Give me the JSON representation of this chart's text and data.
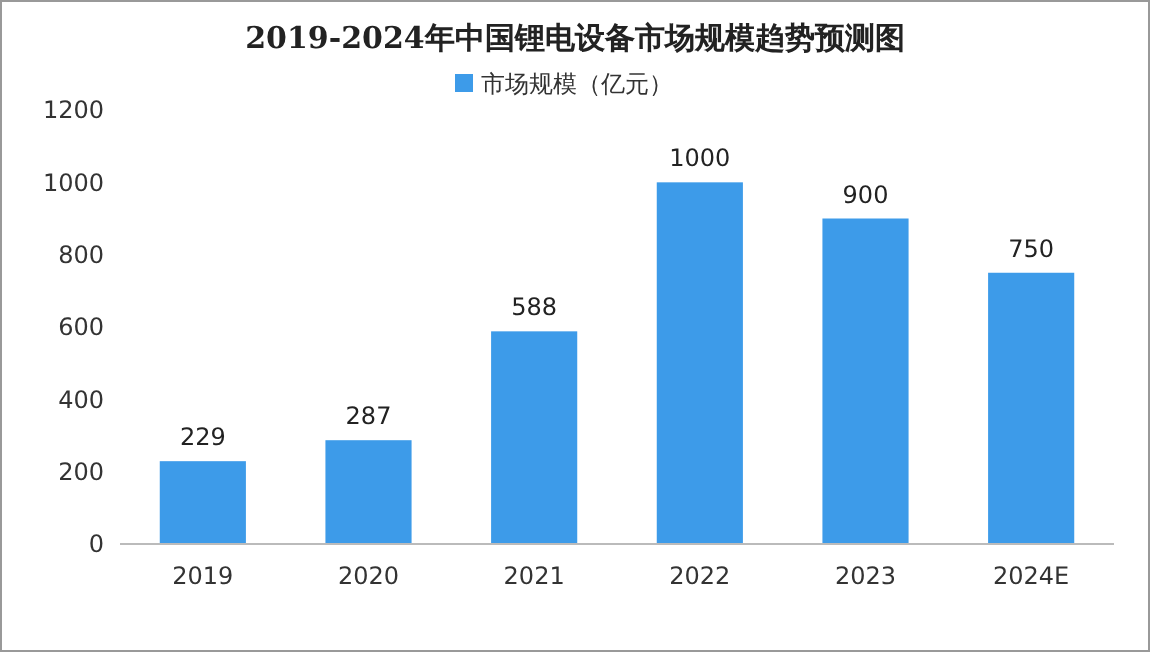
{
  "chart_data": {
    "type": "bar",
    "title": "2019-2024年中国锂电设备市场规模趋势预测图",
    "categories": [
      "2019",
      "2020",
      "2021",
      "2022",
      "2023",
      "2024E"
    ],
    "series": [
      {
        "name": "市场规模（亿元）",
        "color": "#3d9be9",
        "values": [
          229,
          287,
          588,
          1000,
          900,
          750
        ]
      }
    ],
    "ylim": [
      0,
      1200
    ],
    "yticks": [
      0,
      200,
      400,
      600,
      800,
      1000,
      1200
    ],
    "data_labels": true,
    "legend": "top",
    "grid": false
  }
}
